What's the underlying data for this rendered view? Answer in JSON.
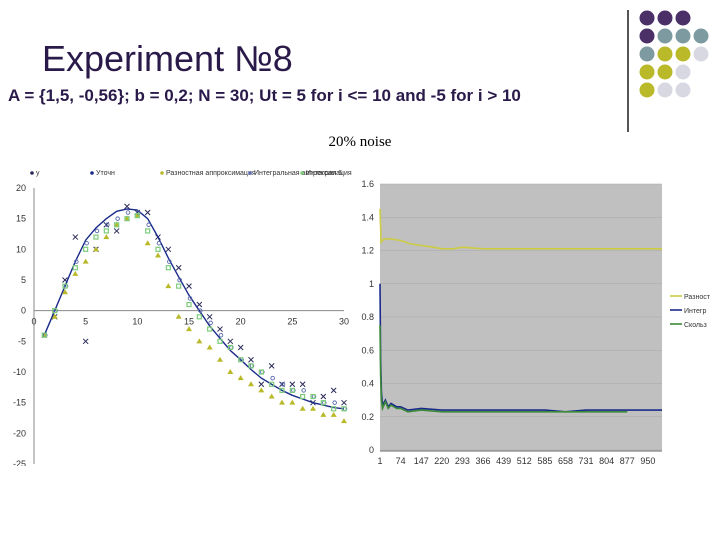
{
  "slide": {
    "title": "Experiment №8",
    "subtitle": "A = {1,5, -0,56}; b = 0,2; N = 30; Ut = 5 for i <= 10 and -5 for i > 10",
    "noise_label": "20% noise"
  },
  "colors": {
    "purple": "#4b2f67",
    "teal": "#7d9aa0",
    "olive": "#b9b92a",
    "light_gray": "#d8d8e2",
    "curve": "#1a2a8a",
    "plot_bg": "#c0c0c0"
  },
  "decor_grid": [
    [
      "purple",
      "purple",
      "purple",
      null
    ],
    [
      "purple",
      "teal",
      "teal",
      "teal"
    ],
    [
      "teal",
      "olive",
      "olive",
      "light_gray"
    ],
    [
      "olive",
      "olive",
      "light_gray",
      null
    ],
    [
      "olive",
      "light_gray",
      "light_gray",
      null
    ]
  ],
  "chart_data": [
    {
      "type": "scatter",
      "legend": [
        "у",
        "Уточн",
        "Разностная аппроксимация",
        "Интегральная аппроксимация",
        "Интеграл 6"
      ],
      "x": [
        1,
        2,
        3,
        4,
        5,
        6,
        7,
        8,
        9,
        10,
        11,
        12,
        13,
        14,
        15,
        16,
        17,
        18,
        19,
        20,
        21,
        22,
        23,
        24,
        25,
        26,
        27,
        28,
        29,
        30
      ],
      "xticks": [
        0,
        5,
        10,
        15,
        20,
        25,
        30
      ],
      "yticks": [
        20,
        15,
        10,
        5,
        0,
        -5,
        -10,
        -15,
        -20,
        -25
      ],
      "ylim": [
        -25,
        20
      ],
      "xlim": [
        0,
        30
      ],
      "series": [
        {
          "name": "у",
          "marker": "x",
          "color": "#2a2a5a",
          "values": [
            -4,
            -1,
            5,
            12,
            -5,
            10,
            14,
            13,
            17,
            16,
            16,
            12,
            10,
            7,
            4,
            1,
            -1,
            -3,
            -5,
            -6,
            -8,
            -12,
            -9,
            -12,
            -12,
            -12,
            -15,
            -14,
            -13,
            -15
          ]
        },
        {
          "name": "Уточн",
          "marker": "line",
          "color": "#1a2a8a",
          "values": [
            -4,
            0,
            4,
            8,
            11.5,
            13.5,
            15,
            16.2,
            16.6,
            16.4,
            15,
            12,
            8.6,
            5.5,
            2.5,
            0,
            -2.5,
            -4.5,
            -6.5,
            -8,
            -9.6,
            -11,
            -12,
            -13,
            -13.8,
            -14.4,
            -15,
            -15.4,
            -15.8,
            -16
          ]
        },
        {
          "name": "Разностная аппроксимация",
          "marker": "tri",
          "color": "#b9b92a",
          "values": [
            -4,
            -1,
            3,
            6,
            8,
            10,
            12,
            14,
            15,
            15.5,
            11,
            9,
            4,
            -1,
            -3,
            -5,
            -6,
            -8,
            -10,
            -11,
            -12,
            -13,
            -14,
            -15,
            -15,
            -16,
            -16,
            -17,
            -17,
            -18
          ]
        },
        {
          "name": "Интегральная аппроксимация",
          "marker": "o",
          "color": "#5a6ab0",
          "values": [
            -4,
            0,
            4,
            8,
            11,
            13,
            14,
            15,
            16,
            16,
            14,
            11,
            8,
            5,
            2,
            0,
            -2,
            -4,
            -6,
            -8,
            -9,
            -10,
            -11,
            -12,
            -13,
            -13,
            -14,
            -15,
            -15,
            -16
          ]
        },
        {
          "name": "Интеграл 6",
          "marker": "sq",
          "color": "#7ccc7c",
          "values": [
            -4,
            0,
            4,
            7,
            10,
            12,
            13,
            14,
            15,
            15.5,
            13,
            10,
            7,
            4,
            1,
            -1,
            -3,
            -5,
            -6,
            -8,
            -9,
            -10,
            -12,
            -13,
            -13,
            -14,
            -14,
            -15,
            -16,
            -16
          ]
        }
      ]
    },
    {
      "type": "line",
      "xticks": [
        "1",
        "74",
        "147",
        "220",
        "293",
        "366",
        "439",
        "512",
        "585",
        "658",
        "731",
        "804",
        "877",
        "950"
      ],
      "yticks": [
        "1.6",
        "1.4",
        "1.2",
        "1",
        "0.8",
        "0.6",
        "0.4",
        "0.2",
        "0"
      ],
      "ylim": [
        0,
        1.6
      ],
      "xlim": [
        1,
        1000
      ],
      "legend_position": "right",
      "series": [
        {
          "name": "Разност",
          "color": "#cccc44",
          "points": [
            [
              1,
              1.45
            ],
            [
              5,
              1.25
            ],
            [
              15,
              1.27
            ],
            [
              40,
              1.27
            ],
            [
              74,
              1.26
            ],
            [
              110,
              1.24
            ],
            [
              147,
              1.23
            ],
            [
              190,
              1.22
            ],
            [
              220,
              1.21
            ],
            [
              260,
              1.21
            ],
            [
              293,
              1.22
            ],
            [
              366,
              1.21
            ],
            [
              439,
              1.21
            ],
            [
              512,
              1.21
            ],
            [
              585,
              1.21
            ],
            [
              658,
              1.21
            ],
            [
              731,
              1.21
            ],
            [
              804,
              1.21
            ],
            [
              877,
              1.21
            ],
            [
              950,
              1.21
            ],
            [
              1000,
              1.21
            ]
          ]
        },
        {
          "name": "Интегр",
          "color": "#1a2a8a",
          "points": [
            [
              1,
              1.0
            ],
            [
              3,
              0.55
            ],
            [
              6,
              0.35
            ],
            [
              10,
              0.27
            ],
            [
              20,
              0.3
            ],
            [
              30,
              0.26
            ],
            [
              40,
              0.28
            ],
            [
              60,
              0.26
            ],
            [
              74,
              0.26
            ],
            [
              100,
              0.24
            ],
            [
              147,
              0.25
            ],
            [
              220,
              0.24
            ],
            [
              293,
              0.24
            ],
            [
              366,
              0.24
            ],
            [
              439,
              0.24
            ],
            [
              512,
              0.24
            ],
            [
              585,
              0.24
            ],
            [
              658,
              0.23
            ],
            [
              731,
              0.24
            ],
            [
              804,
              0.24
            ],
            [
              877,
              0.24
            ],
            [
              950,
              0.24
            ],
            [
              1000,
              0.24
            ]
          ]
        },
        {
          "name": "Скольз",
          "color": "#3a8a3a",
          "points": [
            [
              1,
              0.75
            ],
            [
              3,
              0.45
            ],
            [
              6,
              0.3
            ],
            [
              10,
              0.25
            ],
            [
              20,
              0.29
            ],
            [
              30,
              0.25
            ],
            [
              40,
              0.27
            ],
            [
              60,
              0.25
            ],
            [
              74,
              0.25
            ],
            [
              100,
              0.23
            ],
            [
              147,
              0.24
            ],
            [
              220,
              0.23
            ],
            [
              293,
              0.23
            ],
            [
              366,
              0.23
            ],
            [
              439,
              0.23
            ],
            [
              512,
              0.23
            ],
            [
              585,
              0.23
            ],
            [
              658,
              0.23
            ],
            [
              731,
              0.23
            ],
            [
              804,
              0.23
            ],
            [
              877,
              0.23
            ]
          ]
        }
      ]
    }
  ]
}
